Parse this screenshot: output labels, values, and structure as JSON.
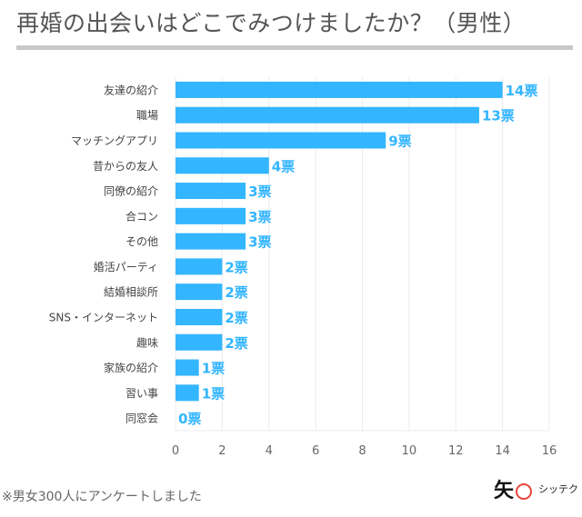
{
  "title": "再婚の出会いはどこでみつけましたか？（男性）",
  "note": "※男女300人にアンケートしました",
  "logo": {
    "mark": "矢",
    "text": "シッテク"
  },
  "chart_data": {
    "type": "bar",
    "orientation": "horizontal",
    "categories": [
      "友達の紹介",
      "職場",
      "マッチングアプリ",
      "昔からの友人",
      "同僚の紹介",
      "合コン",
      "その他",
      "婚活パーティ",
      "結婚相談所",
      "SNS・インターネット",
      "趣味",
      "家族の紹介",
      "習い事",
      "同窓会"
    ],
    "values": [
      14,
      13,
      9,
      4,
      3,
      3,
      3,
      2,
      2,
      2,
      2,
      1,
      1,
      0
    ],
    "value_suffix": "票",
    "xlim": [
      0,
      16
    ],
    "xticks": [
      0,
      2,
      4,
      6,
      8,
      10,
      12,
      14,
      16
    ],
    "grid": true,
    "bar_color": "#33b5ff",
    "label_color": "#33b5ff"
  }
}
